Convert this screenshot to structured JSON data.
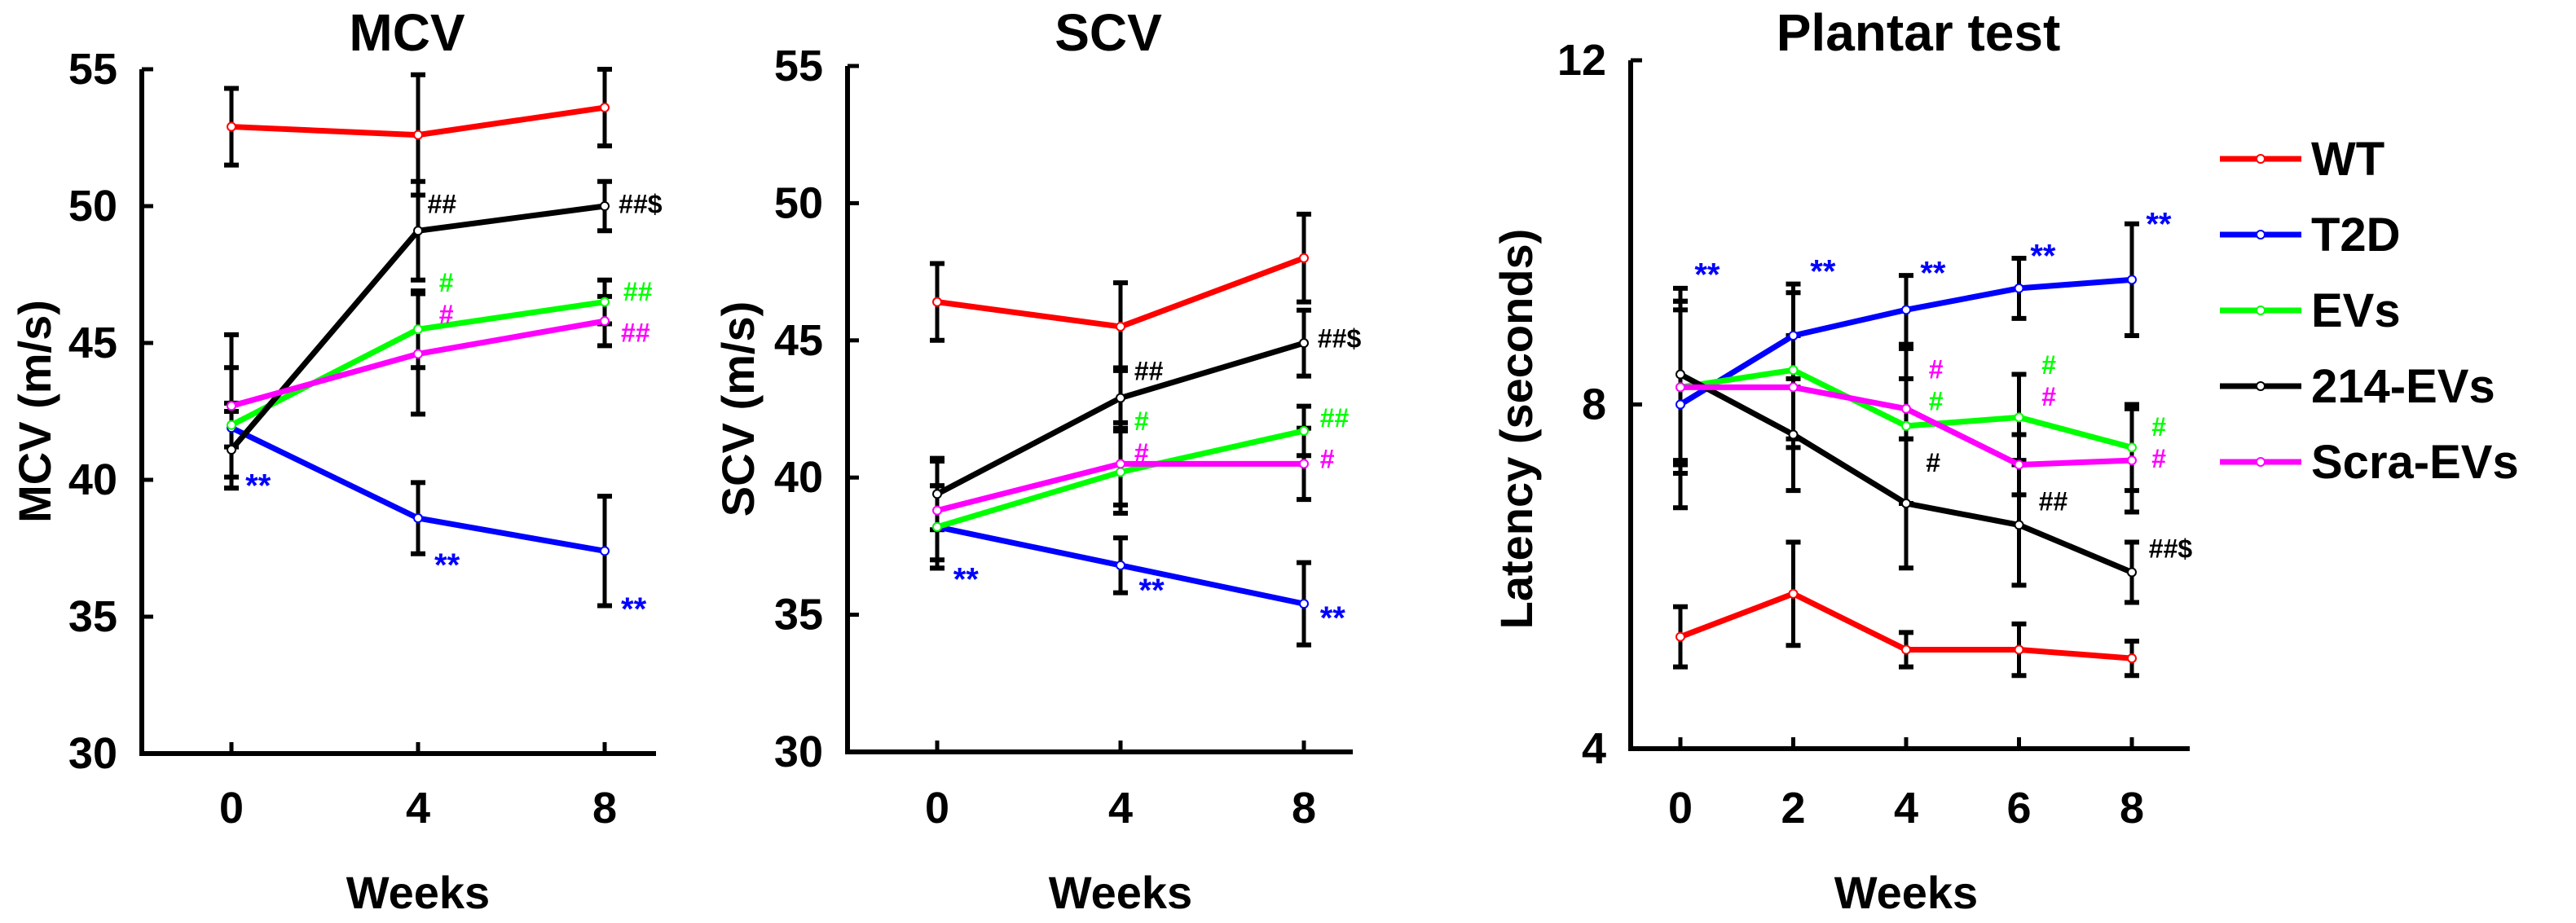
{
  "colors": {
    "WT": "#ff0000",
    "T2D": "#0000ff",
    "EVs": "#00ff00",
    "214-EVs": "#000000",
    "Scra-EVs": "#ff00ff"
  },
  "legend": [
    "WT",
    "T2D",
    "EVs",
    "214-EVs",
    "Scra-EVs"
  ],
  "chart_data": [
    {
      "type": "line",
      "title": "MCV",
      "xlabel": "Weeks",
      "ylabel": "MCV (m/s)",
      "x": [
        0,
        4,
        8
      ],
      "xticks": [
        "0",
        "4",
        "8"
      ],
      "xlim": [
        -2,
        10
      ],
      "ylim": [
        30,
        55
      ],
      "yticks": [
        30,
        35,
        40,
        45,
        50,
        55
      ],
      "grid": false,
      "series": [
        {
          "name": "WT",
          "values": [
            52.9,
            52.6,
            53.6
          ],
          "err": [
            1.4,
            2.2,
            1.4
          ]
        },
        {
          "name": "T2D",
          "values": [
            41.9,
            38.6,
            37.4
          ],
          "err": [
            2.2,
            1.3,
            2.0
          ]
        },
        {
          "name": "EVs",
          "values": [
            42.0,
            45.5,
            46.5
          ],
          "err": [
            0.8,
            1.4,
            0.8
          ]
        },
        {
          "name": "214-EVs",
          "values": [
            41.1,
            49.1,
            50.0
          ],
          "err": [
            1.4,
            1.8,
            0.9
          ]
        },
        {
          "name": "Scra-EVs",
          "values": [
            42.7,
            44.6,
            45.8
          ],
          "err": [
            2.6,
            2.2,
            0.9
          ]
        }
      ],
      "annotations": [
        {
          "x": 0.3,
          "y": 39.7,
          "text": "**",
          "color": "#0000ff"
        },
        {
          "x": 4.35,
          "y": 36.8,
          "text": "**",
          "color": "#0000ff"
        },
        {
          "x": 8.35,
          "y": 35.2,
          "text": "**",
          "color": "#0000ff"
        },
        {
          "x": 4.2,
          "y": 50.0,
          "text": "##",
          "color": "#000000"
        },
        {
          "x": 8.3,
          "y": 50.0,
          "text": "##$",
          "color": "#000000"
        },
        {
          "x": 4.45,
          "y": 46.9,
          "text": "#",
          "color": "#00ff00"
        },
        {
          "x": 4.45,
          "y": 46.2,
          "text": "#",
          "color": "#ff00ff"
        },
        {
          "x": 8.4,
          "y": 46.8,
          "text": "##",
          "color": "#00ff00"
        },
        {
          "x": 8.35,
          "y": 45.3,
          "text": "##",
          "color": "#ff00ff"
        }
      ]
    },
    {
      "type": "line",
      "title": "SCV",
      "xlabel": "Weeks",
      "ylabel": "SCV (m/s)",
      "x": [
        0,
        4,
        8
      ],
      "xticks": [
        "0",
        "4",
        "8"
      ],
      "xlim": [
        -2,
        10
      ],
      "ylim": [
        30,
        55
      ],
      "yticks": [
        30,
        35,
        40,
        45,
        50,
        55
      ],
      "grid": false,
      "series": [
        {
          "name": "WT",
          "values": [
            46.4,
            45.5,
            48.0
          ],
          "err": [
            1.4,
            1.6,
            1.6
          ]
        },
        {
          "name": "T2D",
          "values": [
            38.2,
            36.8,
            35.4
          ],
          "err": [
            1.5,
            1.0,
            1.5
          ]
        },
        {
          "name": "EVs",
          "values": [
            38.2,
            40.2,
            41.7
          ],
          "err": [
            1.5,
            1.5,
            0.9
          ]
        },
        {
          "name": "214-EVs",
          "values": [
            39.4,
            42.9,
            44.9
          ],
          "err": [
            1.3,
            1.1,
            1.2
          ]
        },
        {
          "name": "Scra-EVs",
          "values": [
            38.8,
            40.5,
            40.5
          ],
          "err": [
            1.8,
            1.5,
            1.3
          ]
        }
      ],
      "annotations": [
        {
          "x": 0.35,
          "y": 36.2,
          "text": "**",
          "color": "#0000ff"
        },
        {
          "x": 4.4,
          "y": 35.8,
          "text": "**",
          "color": "#0000ff"
        },
        {
          "x": 8.35,
          "y": 34.8,
          "text": "**",
          "color": "#0000ff"
        },
        {
          "x": 4.3,
          "y": 43.8,
          "text": "##",
          "color": "#000000"
        },
        {
          "x": 8.3,
          "y": 45.0,
          "text": "##$",
          "color": "#000000"
        },
        {
          "x": 4.3,
          "y": 41.8,
          "text": "#",
          "color": "#00ff00"
        },
        {
          "x": 4.3,
          "y": 41.0,
          "text": "#",
          "color": "#ff00ff"
        },
        {
          "x": 8.35,
          "y": 42.1,
          "text": "##",
          "color": "#00ff00"
        },
        {
          "x": 8.35,
          "y": 40.6,
          "text": "#",
          "color": "#ff00ff"
        }
      ]
    },
    {
      "type": "line",
      "title": "Plantar test",
      "xlabel": "Weeks",
      "ylabel": "Latency (seconds)",
      "x": [
        0,
        2,
        4,
        6,
        8
      ],
      "xticks": [
        "0",
        "2",
        "4",
        "6",
        "8"
      ],
      "xlim": [
        -1,
        9.2
      ],
      "ylim": [
        4,
        12
      ],
      "yticks": [
        4,
        8,
        12
      ],
      "grid": false,
      "legend_position": "right",
      "series": [
        {
          "name": "WT",
          "values": [
            5.3,
            5.8,
            5.15,
            5.15,
            5.05
          ],
          "err": [
            0.35,
            0.6,
            0.2,
            0.3,
            0.2
          ]
        },
        {
          "name": "T2D",
          "values": [
            8.0,
            8.8,
            9.1,
            9.35,
            9.45
          ],
          "err": [
            1.2,
            0.6,
            0.4,
            0.35,
            0.65
          ]
        },
        {
          "name": "EVs",
          "values": [
            8.2,
            8.4,
            7.75,
            7.85,
            7.5
          ],
          "err": [
            1.0,
            0.9,
            0.9,
            0.5,
            0.5
          ]
        },
        {
          "name": "214-EVs",
          "values": [
            8.35,
            7.65,
            6.85,
            6.6,
            6.05
          ],
          "err": [
            1.0,
            0.65,
            0.75,
            0.7,
            0.35
          ]
        },
        {
          "name": "Scra-EVs",
          "values": [
            8.2,
            8.2,
            7.95,
            7.3,
            7.35
          ],
          "err": [
            0.9,
            0.6,
            0.35,
            0.35,
            0.6
          ]
        }
      ],
      "annotations": [
        {
          "x": 0.25,
          "y": 9.48,
          "text": "**",
          "color": "#0000ff"
        },
        {
          "x": 2.3,
          "y": 9.52,
          "text": "**",
          "color": "#0000ff"
        },
        {
          "x": 4.25,
          "y": 9.5,
          "text": "**",
          "color": "#0000ff"
        },
        {
          "x": 6.2,
          "y": 9.7,
          "text": "**",
          "color": "#0000ff"
        },
        {
          "x": 8.25,
          "y": 10.07,
          "text": "**",
          "color": "#0000ff"
        },
        {
          "x": 4.4,
          "y": 8.35,
          "text": "#",
          "color": "#ff00ff"
        },
        {
          "x": 4.4,
          "y": 8.05,
          "text": "#",
          "color": "#00ff00"
        },
        {
          "x": 6.4,
          "y": 8.42,
          "text": "#",
          "color": "#00ff00"
        },
        {
          "x": 6.4,
          "y": 8.08,
          "text": "#",
          "color": "#ff00ff"
        },
        {
          "x": 8.35,
          "y": 7.7,
          "text": "#",
          "color": "#00ff00"
        },
        {
          "x": 8.35,
          "y": 7.36,
          "text": "#",
          "color": "#ff00ff"
        },
        {
          "x": 4.35,
          "y": 7.3,
          "text": "#",
          "color": "#000000"
        },
        {
          "x": 6.35,
          "y": 6.85,
          "text": "##",
          "color": "#000000"
        },
        {
          "x": 8.3,
          "y": 6.3,
          "text": "##$",
          "color": "#000000"
        }
      ]
    }
  ]
}
